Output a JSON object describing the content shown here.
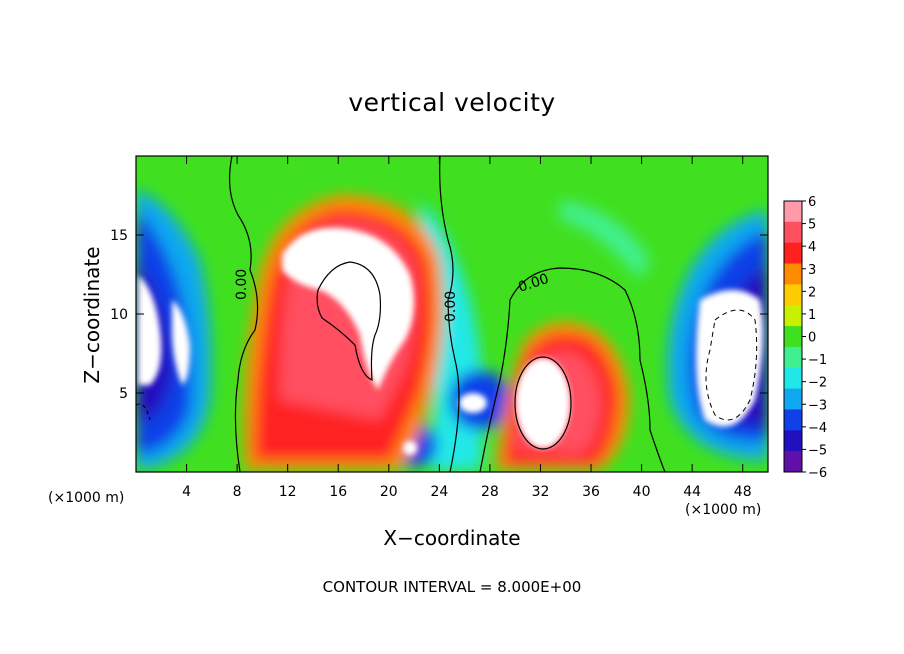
{
  "chart_data": {
    "type": "heatmap",
    "title": "vertical velocity",
    "xlabel": "X−coordinate",
    "ylabel": "Z−coordinate",
    "x_unit": "(×1000 m)",
    "footer": "CONTOUR INTERVAL = 8.000E+00",
    "xlim": [
      0,
      50
    ],
    "ylim": [
      0,
      20
    ],
    "x_ticks": [
      4,
      8,
      12,
      16,
      20,
      24,
      28,
      32,
      36,
      40,
      44,
      48
    ],
    "y_ticks": [
      5,
      10,
      15
    ],
    "colorbar": {
      "min": -6,
      "max": 6,
      "ticks": [
        6,
        5,
        4,
        3,
        2,
        1,
        0,
        -1,
        -2,
        -3,
        -4,
        -5,
        -6
      ],
      "tick_labels": [
        "6",
        "5",
        "4",
        "3",
        "2",
        "1",
        "0",
        "−1",
        "−2",
        "−3",
        "−4",
        "−5",
        "−6"
      ],
      "colors": [
        "#ff9aa8",
        "#ff5060",
        "#ff2020",
        "#ff8c00",
        "#ffcc00",
        "#c8f000",
        "#40e020",
        "#40f090",
        "#20e8e8",
        "#10a8f0",
        "#1040e8",
        "#2010c0",
        "#6010a8"
      ]
    },
    "contour_labels": [
      "0.00",
      "0.00",
      "0.00"
    ],
    "features": [
      {
        "kind": "updraft",
        "x": 17,
        "z": 12,
        "value": 6
      },
      {
        "kind": "updraft",
        "x": 33,
        "z": 5,
        "value": 6
      },
      {
        "kind": "downdraft",
        "x": 3,
        "z": 9,
        "value": -6
      },
      {
        "kind": "downdraft",
        "x": 46,
        "z": 8,
        "value": -6
      },
      {
        "kind": "downdraft",
        "x": 26,
        "z": 5,
        "value": -5
      }
    ]
  }
}
